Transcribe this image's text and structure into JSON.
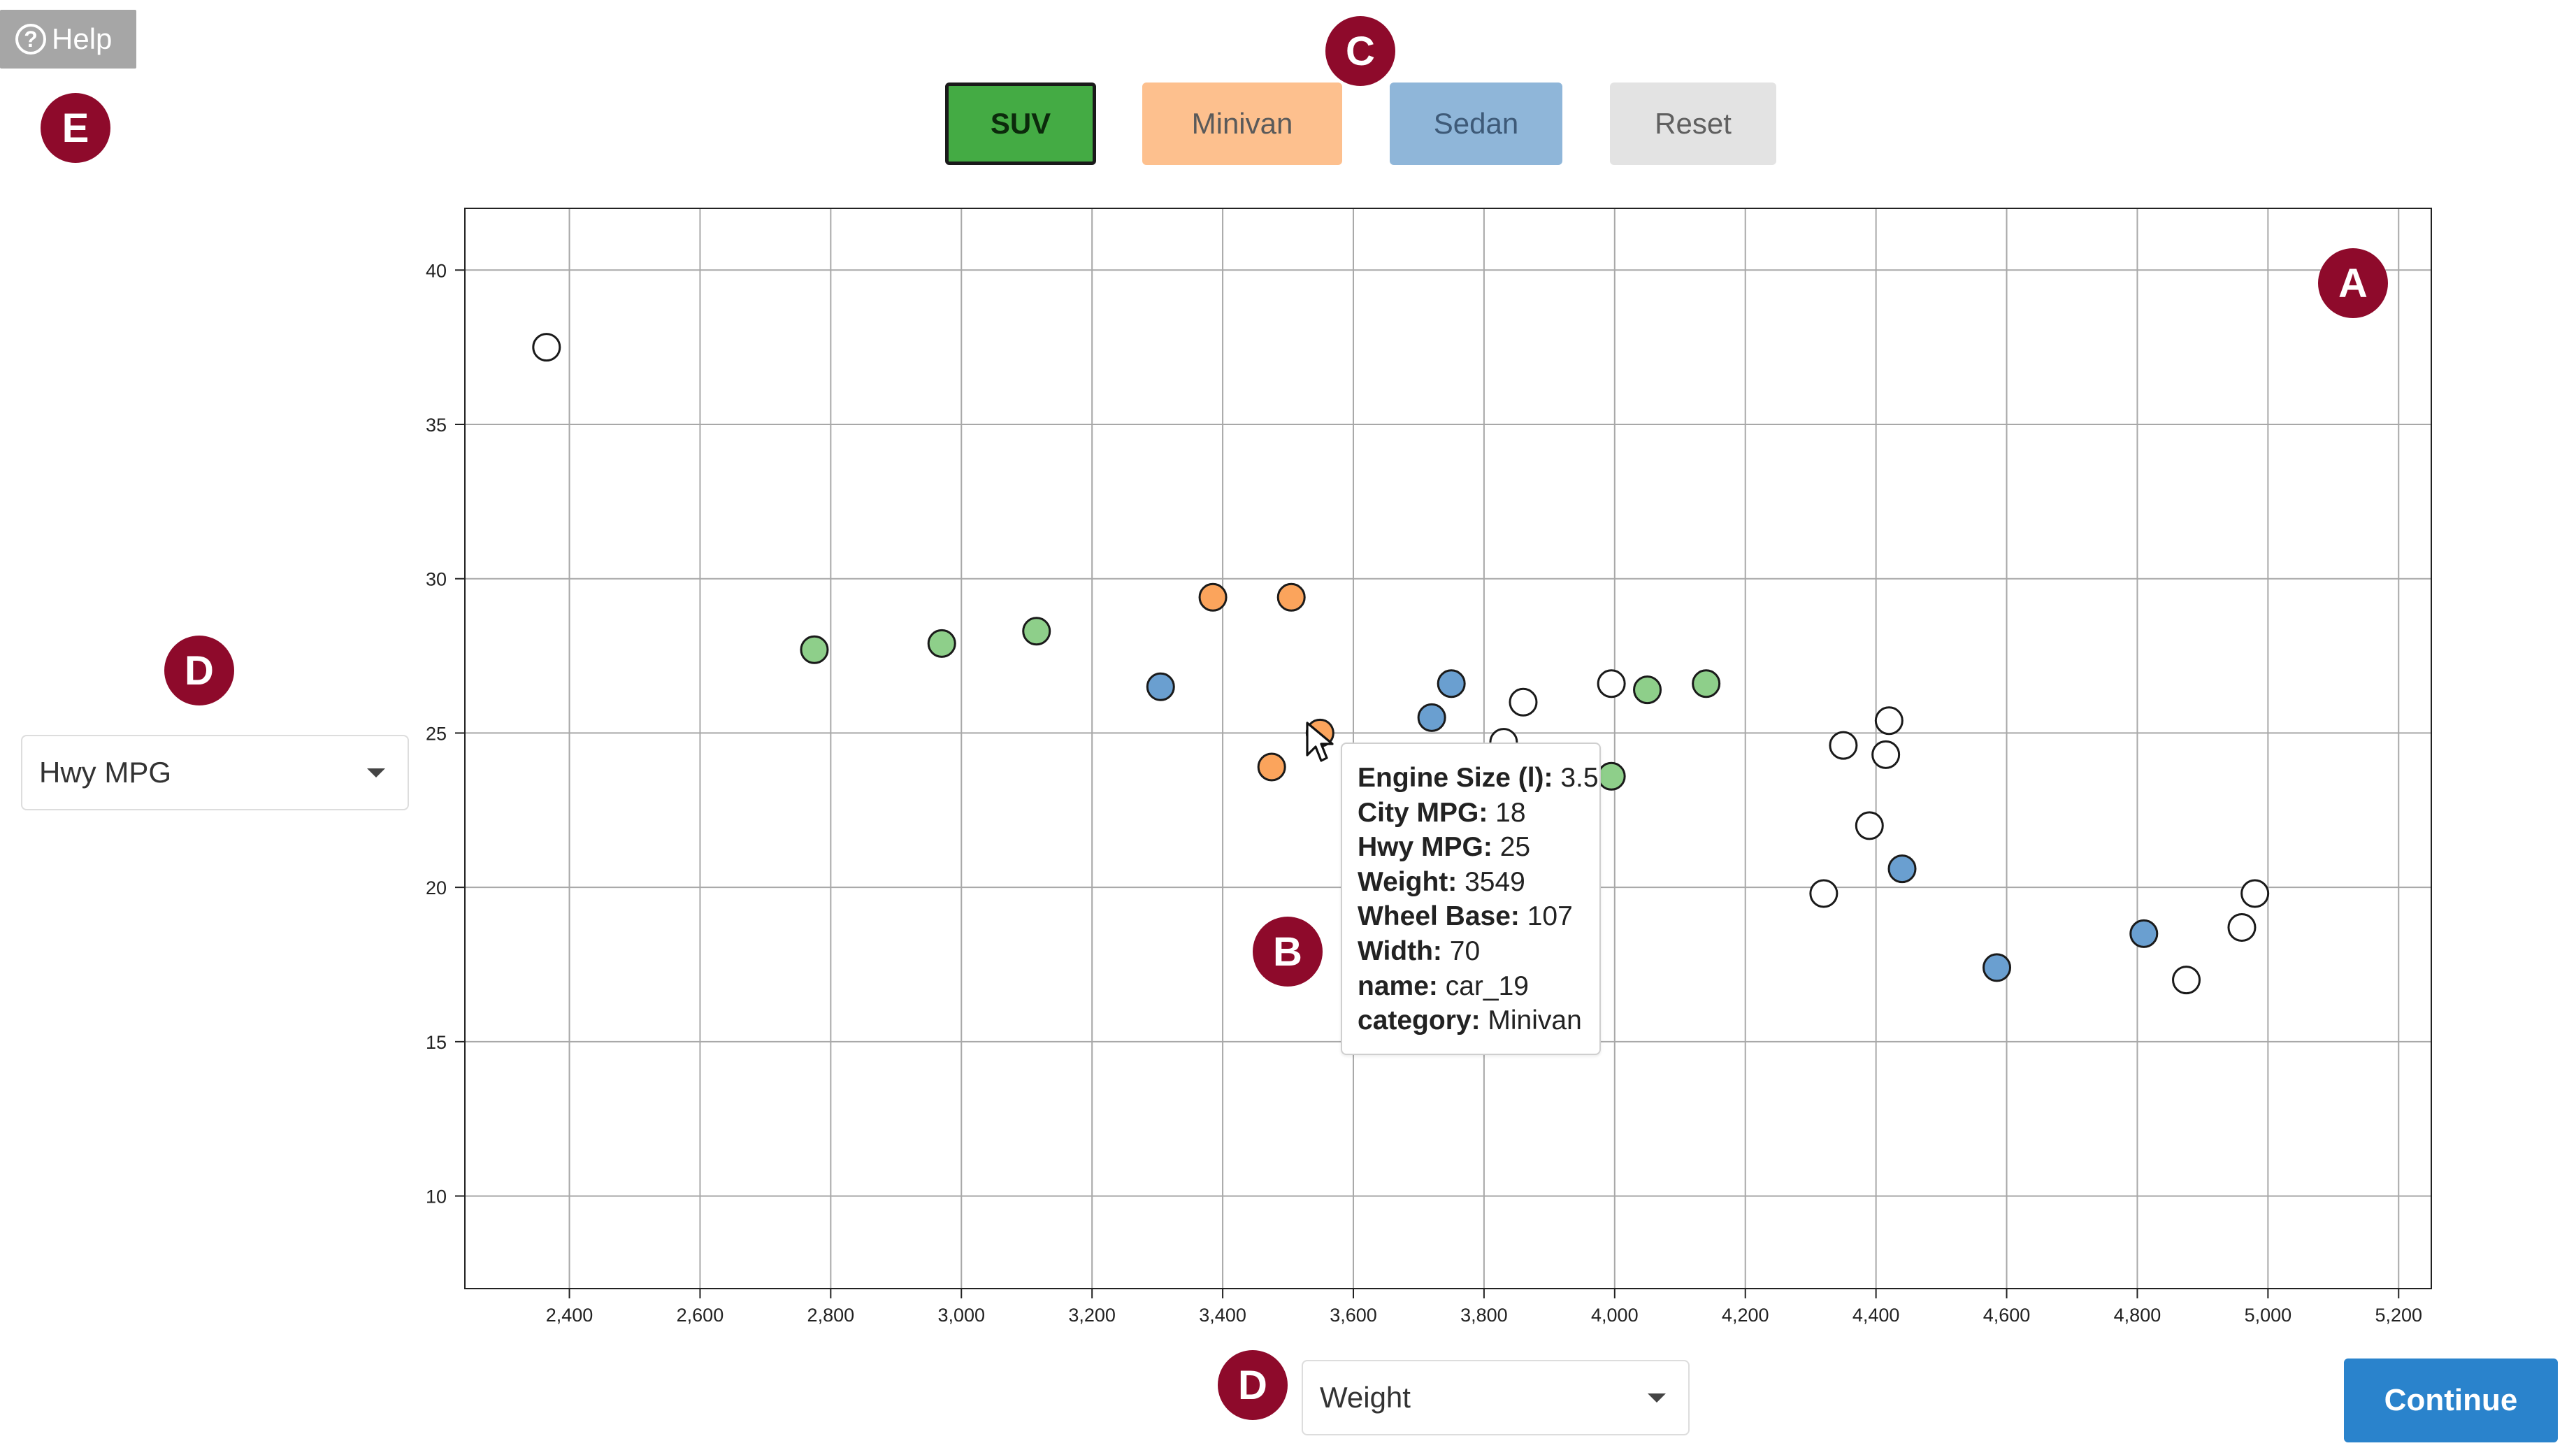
{
  "help": {
    "label": "Help"
  },
  "category_buttons": [
    {
      "label": "SUV",
      "selected": true,
      "color": "#44ab44"
    },
    {
      "label": "Minivan",
      "selected": false,
      "color": "#fdc08e"
    },
    {
      "label": "Sedan",
      "selected": false,
      "color": "#8fb6d9"
    },
    {
      "label": "Reset",
      "selected": false,
      "color": "#e3e3e3"
    }
  ],
  "annotations": {
    "a": "A",
    "b": "B",
    "c": "C",
    "d_left": "D",
    "d_bottom": "D",
    "e": "E"
  },
  "y_axis_select": {
    "value": "Hwy MPG"
  },
  "x_axis_select": {
    "value": "Weight"
  },
  "continue": {
    "label": "Continue"
  },
  "tooltip": {
    "rows": [
      {
        "key": "Engine Size (l):",
        "value": " 3.5"
      },
      {
        "key": "City MPG:",
        "value": " 18"
      },
      {
        "key": "Hwy MPG:",
        "value": " 25"
      },
      {
        "key": "Weight:",
        "value": " 3549"
      },
      {
        "key": "Wheel Base:",
        "value": " 107"
      },
      {
        "key": "Width:",
        "value": " 70"
      },
      {
        "key": "name:",
        "value": " car_19"
      },
      {
        "key": "category:",
        "value": " Minivan"
      }
    ]
  },
  "colors": {
    "SUV": "#8ecf8a",
    "Minivan": "#fba45c",
    "Sedan": "#6a9fd0",
    "Uncategorized": "#ffffff"
  },
  "chart_data": {
    "type": "scatter",
    "xlabel": "",
    "ylabel": "",
    "xlim": [
      2240,
      5250
    ],
    "ylim": [
      7,
      42
    ],
    "x_ticks": [
      2400,
      2600,
      2800,
      3000,
      3200,
      3400,
      3600,
      3800,
      4000,
      4200,
      4400,
      4600,
      4800,
      5000,
      5200
    ],
    "x_tick_labels": [
      "2,400",
      "2,600",
      "2,800",
      "3,000",
      "3,200",
      "3,400",
      "3,600",
      "3,800",
      "4,000",
      "4,200",
      "4,400",
      "4,600",
      "4,800",
      "5,000",
      "5,200"
    ],
    "y_ticks": [
      10,
      15,
      20,
      25,
      30,
      35,
      40
    ],
    "y_tick_labels": [
      "10",
      "15",
      "20",
      "25",
      "30",
      "35",
      "40"
    ],
    "grid": true,
    "points": [
      {
        "x": 2365,
        "y": 37.5,
        "category": "Uncategorized"
      },
      {
        "x": 2775,
        "y": 27.7,
        "category": "SUV"
      },
      {
        "x": 2970,
        "y": 27.9,
        "category": "SUV"
      },
      {
        "x": 3115,
        "y": 28.3,
        "category": "SUV"
      },
      {
        "x": 3305,
        "y": 26.5,
        "category": "Sedan"
      },
      {
        "x": 3385,
        "y": 29.4,
        "category": "Minivan"
      },
      {
        "x": 3505,
        "y": 29.4,
        "category": "Minivan"
      },
      {
        "x": 3475,
        "y": 23.9,
        "category": "Minivan"
      },
      {
        "x": 3549,
        "y": 25,
        "category": "Minivan"
      },
      {
        "x": 3720,
        "y": 25.5,
        "category": "Sedan"
      },
      {
        "x": 3750,
        "y": 26.6,
        "category": "Sedan"
      },
      {
        "x": 3830,
        "y": 24.7,
        "category": "Uncategorized"
      },
      {
        "x": 3860,
        "y": 26.0,
        "category": "Uncategorized"
      },
      {
        "x": 3995,
        "y": 23.6,
        "category": "SUV"
      },
      {
        "x": 3995,
        "y": 26.6,
        "category": "Uncategorized"
      },
      {
        "x": 4050,
        "y": 26.4,
        "category": "SUV"
      },
      {
        "x": 4140,
        "y": 26.6,
        "category": "SUV"
      },
      {
        "x": 4320,
        "y": 19.8,
        "category": "Uncategorized"
      },
      {
        "x": 4350,
        "y": 24.6,
        "category": "Uncategorized"
      },
      {
        "x": 4390,
        "y": 22.0,
        "category": "Uncategorized"
      },
      {
        "x": 4415,
        "y": 24.3,
        "category": "Uncategorized"
      },
      {
        "x": 4420,
        "y": 25.4,
        "category": "Uncategorized"
      },
      {
        "x": 4440,
        "y": 20.6,
        "category": "Sedan"
      },
      {
        "x": 4585,
        "y": 17.4,
        "category": "Sedan"
      },
      {
        "x": 4810,
        "y": 18.5,
        "category": "Sedan"
      },
      {
        "x": 4875,
        "y": 17.0,
        "category": "Uncategorized"
      },
      {
        "x": 4960,
        "y": 18.7,
        "category": "Uncategorized"
      },
      {
        "x": 4980,
        "y": 19.8,
        "category": "Uncategorized"
      }
    ]
  }
}
